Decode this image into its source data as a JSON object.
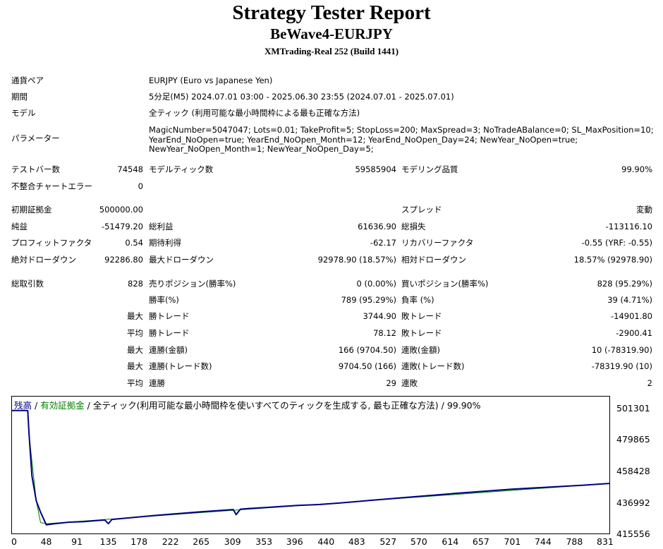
{
  "header": {
    "title": "Strategy Tester Report",
    "expert": "BeWave4-EURJPY",
    "server": "XMTrading-Real 252 (Build 1441)"
  },
  "settings": {
    "symbol_label": "通貨ペア",
    "symbol": "EURJPY (Euro vs Japanese Yen)",
    "period_label": "期間",
    "period": "5分足(M5) 2024.07.01 03:00 - 2025.06.30 23:55 (2024.07.01 - 2025.07.01)",
    "model_label": "モデル",
    "model": "全ティック (利用可能な最小時間枠による最も正確な方法)",
    "params_label": "パラメーター",
    "params": [
      "MagicNumber=5047047; Lots=0.01; TakeProfit=5; StopLoss=200; MaxSpread=3; NoTradeABalance=0; SL_MaxPosition=10;",
      "YearEnd_NoOpen=true; YearEnd_NoOpen_Month=12; YearEnd_NoOpen_Day=24; NewYear_NoOpen=true;",
      "NewYear_NoOpen_Month=1; NewYear_NoOpen_Day=5;"
    ]
  },
  "stats": {
    "bars_label": "テストバー数",
    "bars": "74548",
    "ticks_label": "モデルティック数",
    "ticks": "59585904",
    "quality_label": "モデリング品質",
    "quality": "99.90%",
    "mismatch_label": "不整合チャートエラー",
    "mismatch": "0",
    "deposit_label": "初期証拠金",
    "deposit": "500000.00",
    "spread_label": "スプレッド",
    "spread": "変動",
    "net_label": "純益",
    "net": "-51479.20",
    "gross_profit_label": "総利益",
    "gross_profit": "61636.90",
    "gross_loss_label": "総損失",
    "gross_loss": "-113116.10",
    "pf_label": "プロフィットファクタ",
    "pf": "0.54",
    "expected_label": "期待利得",
    "expected": "-62.17",
    "recovery_label": "リカバリーファクタ",
    "recovery": "-0.55 (YRF: -0.55)",
    "abs_dd_label": "絶対ドローダウン",
    "abs_dd": "92286.80",
    "max_dd_label": "最大ドローダウン",
    "max_dd": "92978.90 (18.57%)",
    "rel_dd_label": "相対ドローダウン",
    "rel_dd": "18.57% (92978.90)",
    "trades_label": "総取引数",
    "trades": "828",
    "short_label": "売りポジション(勝率%)",
    "short": "0 (0.00%)",
    "long_label": "買いポジション(勝率%)",
    "long": "828 (95.29%)",
    "win_pct_label": "勝率(%)",
    "win_pct": "789 (95.29%)",
    "loss_pct_label": "負率 (%)",
    "loss_pct": "39 (4.71%)",
    "max_word": "最大",
    "avg_word": "平均",
    "largest_win_label": "勝トレード",
    "largest_win": "3744.90",
    "largest_loss_label": "敗トレード",
    "largest_loss": "-14901.80",
    "avg_win_label": "勝トレード",
    "avg_win": "78.12",
    "avg_loss_label": "敗トレード",
    "avg_loss": "-2900.41",
    "max_cons_win_label": "連勝(金額)",
    "max_cons_win": "166 (9704.50)",
    "max_cons_loss_label": "連敗(金額)",
    "max_cons_loss": "10 (-78319.90)",
    "max_cons_profit_label": "連勝(トレード数)",
    "max_cons_profit": "9704.50 (166)",
    "max_cons_lossamt_label": "連敗(トレード数)",
    "max_cons_lossamt": "-78319.90 (10)",
    "avg_cons_win_label": "連勝",
    "avg_cons_win": "29",
    "avg_cons_loss_label": "連敗",
    "avg_cons_loss": "2"
  },
  "chart_data": {
    "type": "line",
    "legend": {
      "balance": "残高",
      "sep1": " / ",
      "equity": "有効証拠金",
      "rest": " / 全ティック(利用可能な最小時間枠を使いすべてのティックを生成する, 最も正確な方法) / 99.90%"
    },
    "series_colors": {
      "balance": "#000080",
      "equity": "#008000"
    },
    "y_ticks": [
      "501301",
      "479865",
      "458428",
      "436992",
      "415556"
    ],
    "x_ticks": [
      "0",
      "48",
      "91",
      "135",
      "178",
      "222",
      "265",
      "309",
      "353",
      "396",
      "440",
      "483",
      "527",
      "570",
      "614",
      "657",
      "701",
      "744",
      "788",
      "831"
    ],
    "xlim": [
      0,
      837
    ],
    "ylim": [
      415556,
      501301
    ],
    "series": [
      {
        "name": "残高",
        "x": [
          0,
          22,
          24,
          28,
          34,
          40,
          48,
          60,
          80,
          100,
          130,
          135,
          140,
          200,
          260,
          310,
          314,
          320,
          330,
          400,
          430,
          460,
          500,
          560,
          620,
          700,
          760,
          800,
          837
        ],
        "y": [
          500000,
          500000,
          483000,
          455000,
          438000,
          430200,
          421500,
          422300,
          423300,
          423700,
          424800,
          422300,
          425200,
          427900,
          430300,
          432000,
          428500,
          432200,
          432600,
          434800,
          435400,
          436500,
          438200,
          440600,
          443000,
          446000,
          447600,
          448700,
          449900
        ]
      },
      {
        "name": "有効証拠金",
        "x": [
          0,
          22,
          24,
          34,
          40,
          48,
          837
        ],
        "y": [
          500000,
          500000,
          483000,
          438000,
          423000,
          422300,
          449900
        ]
      }
    ]
  }
}
